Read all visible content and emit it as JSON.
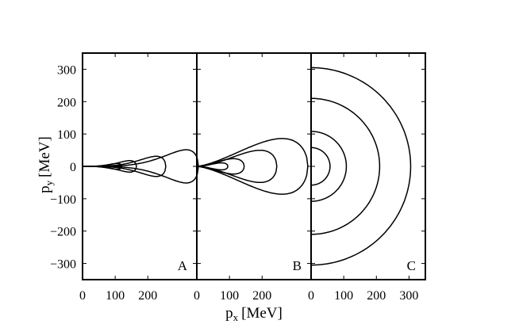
{
  "chart_data": {
    "type": "line",
    "ylabel": "p",
    "ylabel_sub": "y",
    "ylabel_unit": "[MeV]",
    "xlabel": "p",
    "xlabel_sub": "x",
    "xlabel_unit": "[MeV]",
    "ylim": [
      -350,
      350
    ],
    "yticks": [
      300,
      200,
      100,
      0,
      -100,
      -200,
      -300
    ],
    "ytick_labels": [
      "300",
      "200",
      "100",
      "0",
      "−100",
      "−200",
      "−300"
    ],
    "grid": false,
    "legend": "none",
    "panels": [
      {
        "label": "A",
        "xlim": [
          0,
          350
        ],
        "xticks": [
          0,
          100,
          200
        ],
        "xtick_labels": [
          "0",
          "100",
          "200"
        ],
        "contours": [
          {
            "shape": "cone",
            "x_max": 355,
            "y_half": 46,
            "x_peak": 290
          },
          {
            "shape": "cone",
            "x_max": 255,
            "y_half": 28,
            "x_peak": 205
          },
          {
            "shape": "cone",
            "x_max": 165,
            "y_half": 16,
            "x_peak": 130
          },
          {
            "shape": "cone",
            "x_max": 120,
            "y_half": 8,
            "x_peak": 95
          }
        ]
      },
      {
        "label": "B",
        "xlim": [
          0,
          350
        ],
        "xticks": [
          0,
          100,
          200
        ],
        "xtick_labels": [
          "0",
          "100",
          "200"
        ],
        "contours": [
          {
            "shape": "cone",
            "x_max": 340,
            "y_half": 80,
            "x_peak": 220
          },
          {
            "shape": "cone",
            "x_max": 245,
            "y_half": 46,
            "x_peak": 165
          },
          {
            "shape": "cone",
            "x_max": 145,
            "y_half": 22,
            "x_peak": 95
          },
          {
            "shape": "cone",
            "x_max": 95,
            "y_half": 10,
            "x_peak": 65
          }
        ]
      },
      {
        "label": "C",
        "xlim": [
          0,
          350
        ],
        "xticks": [
          0,
          100,
          200,
          300
        ],
        "xtick_labels": [
          "0",
          "100",
          "200",
          "300"
        ],
        "contours": [
          {
            "shape": "arc",
            "radius": 305
          },
          {
            "shape": "arc",
            "radius": 210
          },
          {
            "shape": "arc",
            "radius": 108
          },
          {
            "shape": "arc",
            "radius": 58
          }
        ]
      }
    ]
  }
}
